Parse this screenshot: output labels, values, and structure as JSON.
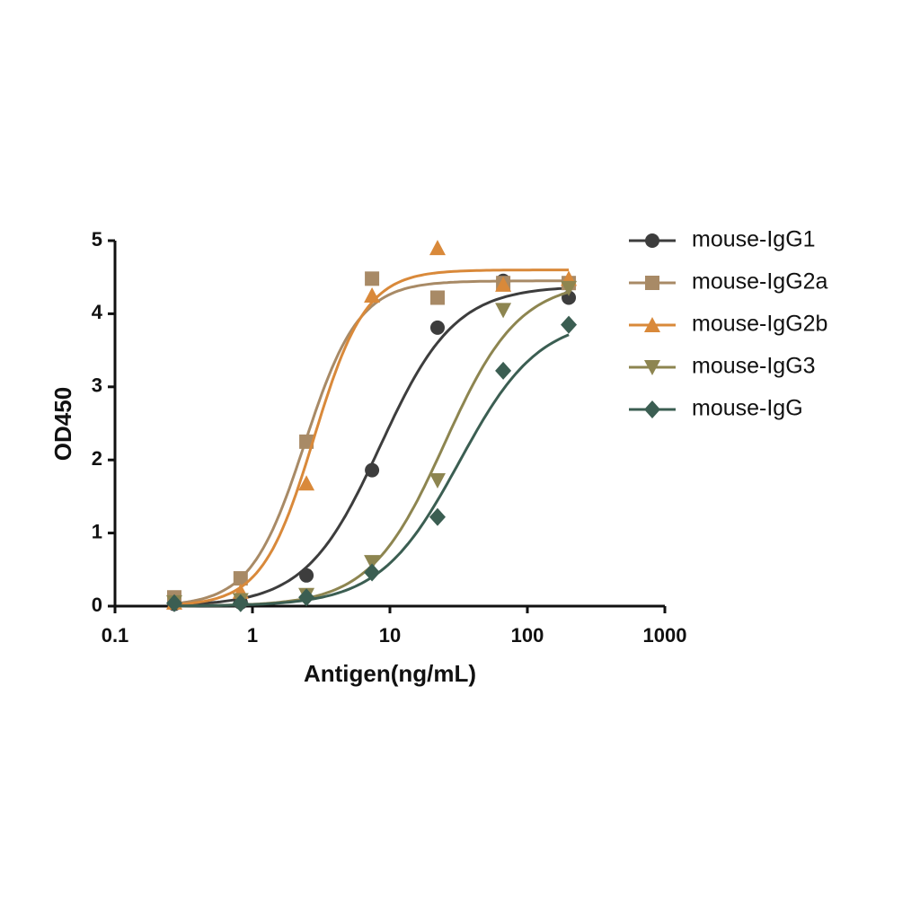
{
  "chart_data": {
    "type": "scatter",
    "x_label": "Antigen(ng/mL)",
    "y_label": "OD450",
    "x_log": true,
    "xlim": [
      0.1,
      1000
    ],
    "xticks": [
      0.1,
      1,
      10,
      100,
      1000
    ],
    "ylim": [
      0,
      5
    ],
    "yticks": [
      0,
      1,
      2,
      3,
      4,
      5
    ],
    "x": [
      0.27,
      0.82,
      2.47,
      7.41,
      22.2,
      66.7,
      200
    ],
    "series": [
      {
        "name": "mouse-IgG1",
        "color": "#3d3d3d",
        "marker": "circle",
        "values": [
          0.03,
          0.05,
          0.42,
          1.86,
          3.81,
          4.45,
          4.22
        ],
        "fit": {
          "top": 4.38,
          "ec50": 8.5,
          "hill": 1.6
        }
      },
      {
        "name": "mouse-IgG2a",
        "color": "#a88a66",
        "marker": "square",
        "values": [
          0.12,
          0.38,
          2.25,
          4.48,
          4.22,
          4.42,
          4.42
        ],
        "fit": {
          "top": 4.45,
          "ec50": 2.4,
          "hill": 2.2
        }
      },
      {
        "name": "mouse-IgG2b",
        "color": "#d9893a",
        "marker": "triangle-up",
        "values": [
          0.05,
          0.2,
          1.68,
          4.25,
          4.9,
          4.4,
          4.48
        ],
        "fit": {
          "top": 4.6,
          "ec50": 2.8,
          "hill": 2.3
        }
      },
      {
        "name": "mouse-IgG3",
        "color": "#8d8550",
        "marker": "triangle-down",
        "values": [
          0.05,
          0.08,
          0.15,
          0.6,
          1.72,
          4.05,
          4.35
        ],
        "fit": {
          "top": 4.45,
          "ec50": 25,
          "hill": 1.6
        }
      },
      {
        "name": "mouse-IgG",
        "color": "#3b5e52",
        "marker": "diamond",
        "values": [
          0.04,
          0.04,
          0.12,
          0.46,
          1.22,
          3.22,
          3.85
        ],
        "fit": {
          "top": 3.95,
          "ec50": 32,
          "hill": 1.5
        }
      }
    ]
  }
}
